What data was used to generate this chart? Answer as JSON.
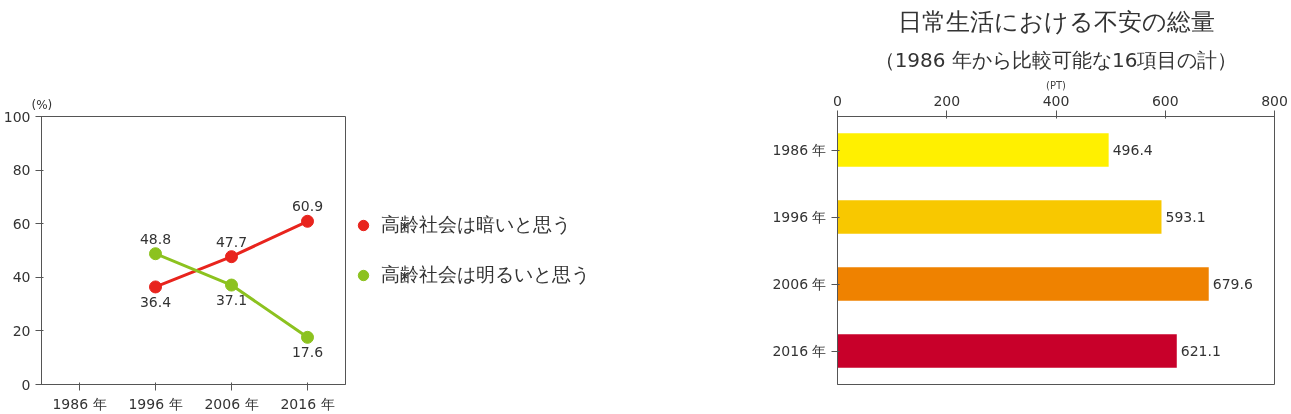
{
  "chart_data": [
    {
      "type": "line",
      "ylabel": "(%)",
      "categories": [
        "1986 年",
        "1996 年",
        "2006 年",
        "2016 年"
      ],
      "series": [
        {
          "name": "高齢社会は暗いと思う",
          "color": "#e8241d",
          "values": [
            null,
            36.4,
            47.7,
            60.9
          ]
        },
        {
          "name": "高齢社会は明るいと思う",
          "color": "#8cc21f",
          "values": [
            null,
            48.8,
            37.1,
            17.6
          ]
        }
      ],
      "ylim": [
        0,
        100
      ],
      "yticks": [
        0,
        20,
        40,
        60,
        80,
        100
      ],
      "grid": false,
      "legend": "right",
      "marker": "circle",
      "line_style": "solid",
      "data_labels": true
    },
    {
      "type": "bar",
      "orientation": "horizontal",
      "title": "日常生活における不安の総量",
      "subtitle": "（1986 年から比較可能な16項目の計）",
      "xlabel": "(PT)",
      "categories": [
        "1986 年",
        "1996 年",
        "2006 年",
        "2016 年"
      ],
      "values": [
        496.4,
        593.1,
        679.6,
        621.1
      ],
      "colors": [
        "#fff000",
        "#f8c800",
        "#ef8200",
        "#c8002a"
      ],
      "xlim": [
        0,
        800
      ],
      "xticks": [
        0,
        200,
        400,
        600,
        800
      ],
      "grid": false,
      "data_labels": true
    }
  ]
}
